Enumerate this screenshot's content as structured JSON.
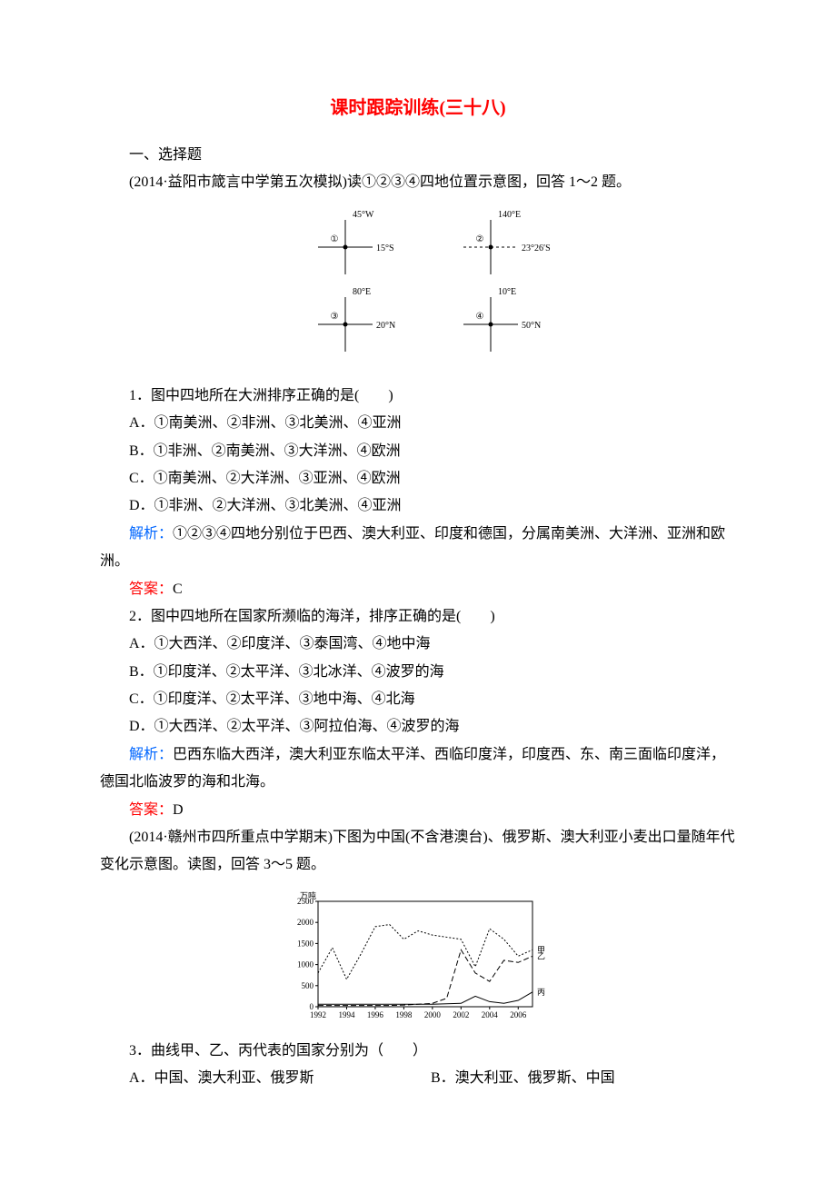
{
  "title": "课时跟踪训练(三十八)",
  "section1": "一、选择题",
  "intro1": "(2014·益阳市箴言中学第五次模拟)读①②③④四地位置示意图，回答 1～2 题。",
  "diagram1": {
    "points": [
      {
        "id": "①",
        "lon": "45°W",
        "lat": "15°S",
        "lat_dash": false
      },
      {
        "id": "②",
        "lon": "140°E",
        "lat": "23°26′S",
        "lat_dash": true
      },
      {
        "id": "③",
        "lon": "80°E",
        "lat": "20°N",
        "lat_dash": false
      },
      {
        "id": "④",
        "lon": "10°E",
        "lat": "50°N",
        "lat_dash": false
      }
    ],
    "axis_color": "#000000",
    "font_size": 10
  },
  "q1": {
    "stem": "1．图中四地所在大洲排序正确的是(　　)",
    "opts": [
      "A．①南美洲、②非洲、③北美洲、④亚洲",
      "B．①非洲、②南美洲、③大洋洲、④欧洲",
      "C．①南美洲、②大洋洲、③亚洲、④欧洲",
      "D．①非洲、②大洋洲、③北美洲、④亚洲"
    ],
    "explain_label": "解析：",
    "explain": "①②③④四地分别位于巴西、澳大利亚、印度和德国，分属南美洲、大洋洲、亚洲和欧洲。",
    "answer_label": "答案：",
    "answer": "C"
  },
  "q2": {
    "stem": "2．图中四地所在国家所濒临的海洋，排序正确的是(　　)",
    "opts": [
      "A．①大西洋、②印度洋、③泰国湾、④地中海",
      "B．①印度洋、②太平洋、③北冰洋、④波罗的海",
      "C．①印度洋、②太平洋、③地中海、④北海",
      "D．①大西洋、②太平洋、③阿拉伯海、④波罗的海"
    ],
    "explain_label": "解析：",
    "explain": "巴西东临大西洋，澳大利亚东临太平洋、西临印度洋，印度西、东、南三面临印度洋，德国北临波罗的海和北海。",
    "answer_label": "答案：",
    "answer": "D"
  },
  "intro2": "(2014·赣州市四所重点中学期末)下图为中国(不含港澳台)、俄罗斯、澳大利亚小麦出口量随年代变化示意图。读图，回答 3～5 题。",
  "chart1": {
    "type": "line",
    "ylabel": "万吨",
    "ylim": [
      0,
      2500
    ],
    "ytick_step": 500,
    "xticks": [
      "1992",
      "1994",
      "1996",
      "1998",
      "2000",
      "2002",
      "2004",
      "2006"
    ],
    "bg": "#ffffff",
    "axis_color": "#000000",
    "font_size": 9,
    "series": [
      {
        "name": "甲",
        "dash": "2,2",
        "color": "#000000",
        "points": [
          [
            1992,
            800
          ],
          [
            1993,
            1400
          ],
          [
            1994,
            650
          ],
          [
            1995,
            1250
          ],
          [
            1996,
            1900
          ],
          [
            1997,
            1950
          ],
          [
            1998,
            1600
          ],
          [
            1999,
            1800
          ],
          [
            2000,
            1700
          ],
          [
            2001,
            1650
          ],
          [
            2002,
            1600
          ],
          [
            2003,
            950
          ],
          [
            2004,
            1850
          ],
          [
            2005,
            1600
          ],
          [
            2006,
            1200
          ],
          [
            2007,
            1350
          ]
        ]
      },
      {
        "name": "乙",
        "dash": "6,3",
        "color": "#000000",
        "points": [
          [
            1992,
            30
          ],
          [
            1993,
            30
          ],
          [
            1994,
            30
          ],
          [
            1995,
            30
          ],
          [
            1996,
            30
          ],
          [
            1997,
            30
          ],
          [
            1998,
            40
          ],
          [
            1999,
            60
          ],
          [
            2000,
            80
          ],
          [
            2001,
            200
          ],
          [
            2002,
            1350
          ],
          [
            2003,
            800
          ],
          [
            2004,
            600
          ],
          [
            2005,
            1100
          ],
          [
            2006,
            1050
          ],
          [
            2007,
            1200
          ]
        ]
      },
      {
        "name": "丙",
        "dash": "",
        "color": "#000000",
        "points": [
          [
            1992,
            60
          ],
          [
            1993,
            60
          ],
          [
            1994,
            60
          ],
          [
            1995,
            60
          ],
          [
            1996,
            60
          ],
          [
            1997,
            60
          ],
          [
            1998,
            60
          ],
          [
            1999,
            60
          ],
          [
            2000,
            60
          ],
          [
            2001,
            70
          ],
          [
            2002,
            80
          ],
          [
            2003,
            250
          ],
          [
            2004,
            120
          ],
          [
            2005,
            80
          ],
          [
            2006,
            150
          ],
          [
            2007,
            350
          ]
        ]
      }
    ]
  },
  "q3": {
    "stem": "3．曲线甲、乙、丙代表的国家分别为（　　）",
    "optA": "A．中国、澳大利亚、俄罗斯",
    "optB": "B．澳大利亚、俄罗斯、中国"
  }
}
